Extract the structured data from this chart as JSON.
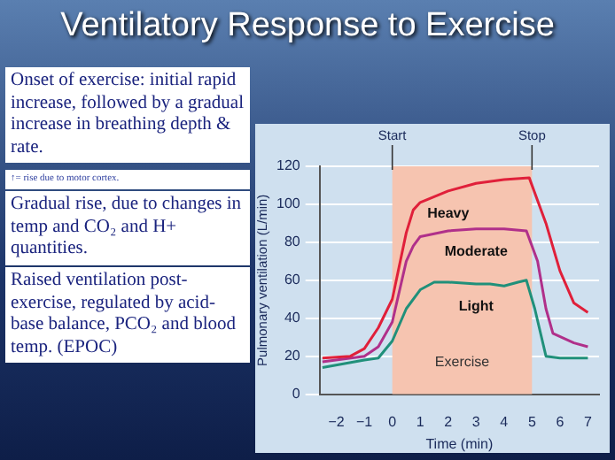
{
  "chart_data": {
    "type": "line",
    "title": "Ventilatory Response to Exercise",
    "xlabel": "Time (min)",
    "ylabel": "Pulmonary ventilation (L/min)",
    "annotations": [
      "Onset of exercise: initial rapid increase, followed by a gradual increase in breathing depth & rate.",
      "↑= rise due to motor cortex.",
      "Gradual rise, due to changes in temp and CO₂ and H+ quantities.",
      "Raised ventilation post-exercise, regulated by acid-base balance, PCO₂ and blood temp. (EPOC)"
    ],
    "series": [
      {
        "name": "Heavy",
        "color": "#e0203a",
        "x": [
          -2.5,
          -1.5,
          -1,
          -0.5,
          0,
          0.5,
          0.75,
          1,
          2,
          3,
          4,
          4.9,
          5.5,
          6,
          6.5,
          7
        ],
        "values": [
          19,
          20,
          24,
          35,
          50,
          85,
          97,
          101,
          107,
          111,
          113,
          114,
          90,
          65,
          48,
          43
        ]
      },
      {
        "name": "Moderate",
        "color": "#b0308a",
        "x": [
          -2.5,
          -1,
          -0.5,
          0,
          0.5,
          0.75,
          1,
          2,
          3,
          4,
          4.8,
          5.2,
          5.5,
          5.75,
          6.5,
          7
        ],
        "values": [
          17,
          20,
          25,
          38,
          70,
          78,
          83,
          86,
          87,
          87,
          86,
          70,
          45,
          32,
          27,
          25
        ]
      },
      {
        "name": "Light",
        "color": "#20907a",
        "x": [
          -2.5,
          -1,
          -0.5,
          0,
          0.5,
          1,
          1.5,
          2,
          3,
          3.5,
          4,
          4.5,
          4.8,
          5.1,
          5.5,
          6,
          7
        ],
        "values": [
          14,
          18,
          19,
          28,
          45,
          55,
          59,
          59,
          58,
          58,
          57,
          59,
          60,
          45,
          20,
          19,
          19
        ]
      }
    ],
    "xlim": [
      -2.6,
      7.4
    ],
    "ylim": [
      0,
      120
    ],
    "xticks": [
      {
        "value": -2,
        "label": "−2"
      },
      {
        "value": -1,
        "label": "−1"
      },
      0,
      1,
      2,
      3,
      4,
      5,
      6,
      7
    ],
    "yticks": [
      0,
      20,
      40,
      60,
      80,
      100,
      120
    ],
    "bands": [
      {
        "axis": "x",
        "from": 0,
        "to": 5,
        "label": "Exercise",
        "color": "#f6c4b0"
      }
    ],
    "ref_lines": [
      {
        "axis": "x",
        "value": 0,
        "label": "Start"
      },
      {
        "axis": "x",
        "value": 5,
        "label": "Stop"
      }
    ],
    "grid": "y",
    "marker": "none",
    "line_style": "solid"
  }
}
